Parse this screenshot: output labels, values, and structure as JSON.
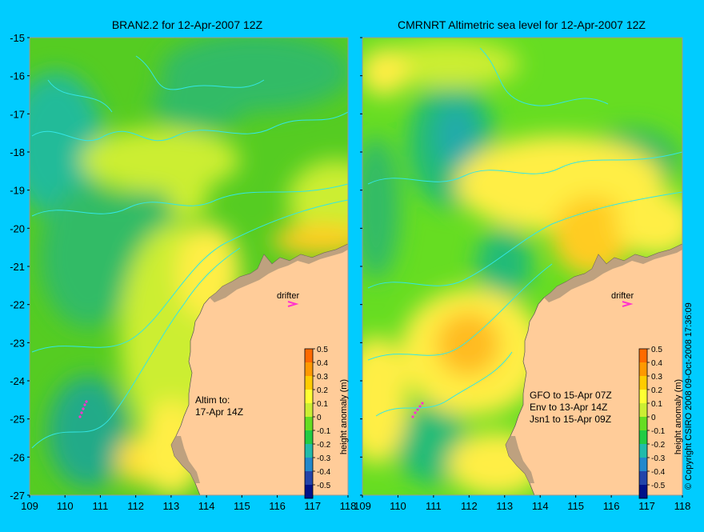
{
  "colors": {
    "background": "#00ccff",
    "land": "#ffcc99",
    "coast_shade": "#b3997a",
    "contour": "#33e6e6",
    "drifter": "#ff33cc",
    "frame": "#999999"
  },
  "left_panel": {
    "title": "BRAN2.2 for 12-Apr-2007 12Z",
    "annotation_lines": [
      "Altim to:",
      "17-Apr 14Z"
    ],
    "drifter_label": "drifter"
  },
  "right_panel": {
    "title": "CMRNRT Altimetric sea level  for 12-Apr-2007 12Z",
    "annotation_lines": [
      "GFO to 15-Apr 07Z",
      "Env to 13-Apr 14Z",
      "Jsn1 to 15-Apr 09Z"
    ],
    "drifter_label": "drifter"
  },
  "colorbar": {
    "label": "height anomaly (m)",
    "ticks": [
      "0.5",
      "0.4",
      "0.3",
      "0.2",
      "0.1",
      "0",
      "-0.1",
      "-0.2",
      "-0.3",
      "-0.4",
      "-0.5"
    ],
    "colors": [
      "#ff6a00",
      "#ff9900",
      "#ffcc00",
      "#ffff33",
      "#ccee33",
      "#66dd22",
      "#22cc44",
      "#22bbaa",
      "#2288cc",
      "#2244aa",
      "#001188"
    ]
  },
  "axes": {
    "y_ticks": [
      "-15",
      "-16",
      "-17",
      "-18",
      "-19",
      "-20",
      "-21",
      "-22",
      "-23",
      "-24",
      "-25",
      "-26",
      "-27"
    ],
    "x_ticks": [
      "109",
      "110",
      "111",
      "112",
      "113",
      "114",
      "115",
      "116",
      "117",
      "118"
    ],
    "x_range": [
      109,
      118
    ],
    "y_range": [
      -27,
      -15
    ]
  },
  "side_note": "© Copyright CSIRO 2008    09-Oct-2008 17:36:09"
}
